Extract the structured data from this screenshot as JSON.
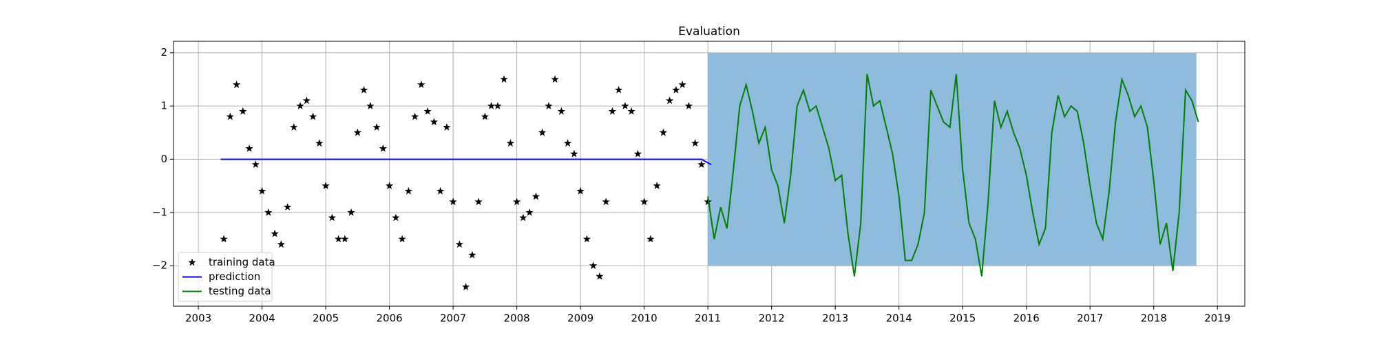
{
  "chart_data": {
    "type": "line",
    "title": "Evaluation",
    "xlim": [
      2002.61,
      2019.43
    ],
    "ylim": [
      -2.76,
      2.216
    ],
    "xticks": [
      2003,
      2004,
      2005,
      2006,
      2007,
      2008,
      2009,
      2010,
      2011,
      2012,
      2013,
      2014,
      2015,
      2016,
      2017,
      2018,
      2019
    ],
    "yticks": [
      {
        "value": -2,
        "label": "−2"
      },
      {
        "value": -1,
        "label": "−1"
      },
      0,
      1,
      2
    ],
    "grid": true,
    "legend": "lower-left",
    "span": {
      "x": [
        2011.0,
        2018.67
      ],
      "y": [
        -2,
        2
      ],
      "color": "#8fbbdc"
    },
    "series": [
      {
        "name": "training data",
        "style": "marker",
        "color": "#000000",
        "x": [
          2003.4,
          2003.5,
          2003.6,
          2003.7,
          2003.8,
          2003.9,
          2004.0,
          2004.1,
          2004.2,
          2004.3,
          2004.4,
          2004.5,
          2004.6,
          2004.7,
          2004.8,
          2004.9,
          2005.0,
          2005.1,
          2005.2,
          2005.3,
          2005.4,
          2005.5,
          2005.6,
          2005.7,
          2005.8,
          2005.9,
          2006.0,
          2006.1,
          2006.2,
          2006.3,
          2006.4,
          2006.5,
          2006.6,
          2006.7,
          2006.8,
          2006.9,
          2007.0,
          2007.1,
          2007.2,
          2007.3,
          2007.4,
          2007.5,
          2007.6,
          2007.7,
          2007.8,
          2007.9,
          2008.0,
          2008.1,
          2008.2,
          2008.3,
          2008.4,
          2008.5,
          2008.6,
          2008.7,
          2008.8,
          2008.9,
          2009.0,
          2009.1,
          2009.2,
          2009.3,
          2009.4,
          2009.5,
          2009.6,
          2009.7,
          2009.8,
          2009.9,
          2010.0,
          2010.1,
          2010.2,
          2010.3,
          2010.4,
          2010.5,
          2010.6,
          2010.7,
          2010.8,
          2010.9,
          2011.0
        ],
        "values": [
          -1.5,
          0.8,
          1.4,
          0.9,
          0.2,
          -0.1,
          -0.6,
          -1.0,
          -1.4,
          -1.6,
          -0.9,
          0.6,
          1.0,
          1.1,
          0.8,
          0.3,
          -0.5,
          -1.1,
          -1.5,
          -1.5,
          -1.0,
          0.5,
          1.3,
          1.0,
          0.6,
          0.2,
          -0.5,
          -1.1,
          -1.5,
          -0.6,
          0.8,
          1.4,
          0.9,
          0.7,
          -0.6,
          0.6,
          -0.8,
          -1.6,
          -2.4,
          -1.8,
          -0.8,
          0.8,
          1.0,
          1.0,
          1.5,
          0.3,
          -0.8,
          -1.1,
          -1.0,
          -0.7,
          0.5,
          1.0,
          1.5,
          0.9,
          0.3,
          0.1,
          -0.6,
          -1.5,
          -2.0,
          -2.2,
          -0.8,
          0.9,
          1.3,
          1.0,
          0.9,
          0.1,
          -0.8,
          -1.5,
          -0.5,
          0.5,
          1.1,
          1.3,
          1.4,
          1.0,
          0.3,
          -0.1,
          -0.8
        ]
      },
      {
        "name": "prediction",
        "style": "line",
        "color": "#0000ff",
        "x": [
          2003.35,
          2005,
          2007,
          2009,
          2010.9,
          2011.05
        ],
        "values": [
          0,
          0,
          0,
          0,
          0,
          -0.1
        ]
      },
      {
        "name": "testing data",
        "style": "line",
        "color": "#008000",
        "x": [
          2011.0,
          2011.1,
          2011.2,
          2011.3,
          2011.4,
          2011.5,
          2011.6,
          2011.7,
          2011.8,
          2011.9,
          2012.0,
          2012.1,
          2012.2,
          2012.3,
          2012.4,
          2012.5,
          2012.6,
          2012.7,
          2012.8,
          2012.9,
          2013.0,
          2013.1,
          2013.2,
          2013.3,
          2013.4,
          2013.5,
          2013.6,
          2013.7,
          2013.8,
          2013.9,
          2014.0,
          2014.1,
          2014.2,
          2014.3,
          2014.4,
          2014.5,
          2014.6,
          2014.7,
          2014.8,
          2014.9,
          2015.0,
          2015.1,
          2015.2,
          2015.3,
          2015.4,
          2015.5,
          2015.6,
          2015.7,
          2015.8,
          2015.9,
          2016.0,
          2016.1,
          2016.2,
          2016.3,
          2016.4,
          2016.5,
          2016.6,
          2016.7,
          2016.8,
          2016.9,
          2017.0,
          2017.1,
          2017.2,
          2017.3,
          2017.4,
          2017.5,
          2017.6,
          2017.7,
          2017.8,
          2017.9,
          2018.0,
          2018.1,
          2018.2,
          2018.3,
          2018.4,
          2018.5,
          2018.6,
          2018.7
        ],
        "values": [
          -0.7,
          -1.5,
          -0.9,
          -1.3,
          -0.2,
          1.0,
          1.4,
          0.9,
          0.3,
          0.6,
          -0.2,
          -0.5,
          -1.2,
          -0.3,
          1.0,
          1.3,
          0.9,
          1.0,
          0.6,
          0.2,
          -0.4,
          -0.3,
          -1.4,
          -2.2,
          -1.2,
          1.6,
          1.0,
          1.1,
          0.6,
          0.1,
          -0.7,
          -1.9,
          -1.9,
          -1.6,
          -1.0,
          1.3,
          1.0,
          0.7,
          0.6,
          1.6,
          -0.2,
          -1.2,
          -1.5,
          -2.2,
          -0.8,
          1.1,
          0.6,
          0.9,
          0.5,
          0.2,
          -0.3,
          -1.0,
          -1.6,
          -1.3,
          0.5,
          1.2,
          0.8,
          1.0,
          0.9,
          0.3,
          -0.5,
          -1.2,
          -1.5,
          -0.6,
          0.7,
          1.5,
          1.2,
          0.8,
          1.0,
          0.6,
          -0.4,
          -1.6,
          -1.2,
          -2.1,
          -1.0,
          1.3,
          1.1,
          0.7
        ]
      }
    ]
  }
}
